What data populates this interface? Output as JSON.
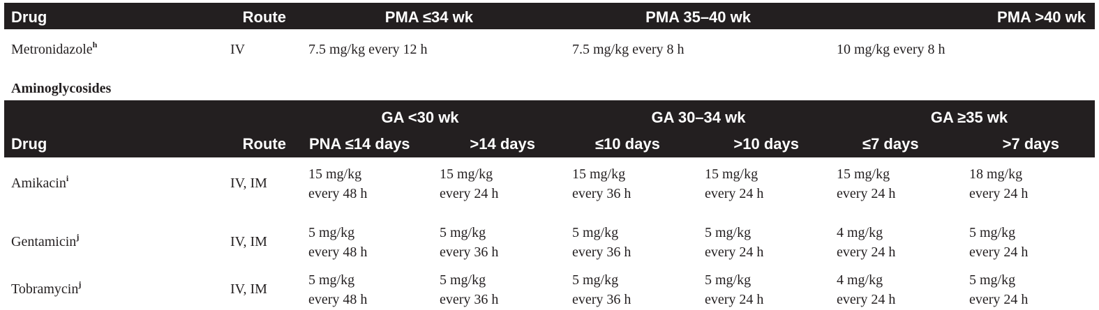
{
  "table1": {
    "headers": {
      "drug": "Drug",
      "route": "Route",
      "pma1": "PMA ≤34 wk",
      "pma2": "PMA 35–40 wk",
      "pma3": "PMA >40 wk"
    },
    "row": {
      "drug": "Metronidazole",
      "footnote": "h",
      "route": "IV",
      "pma1": "7.5 mg/kg every 12 h",
      "pma2": "7.5 mg/kg every 8 h",
      "pma3": "10 mg/kg every 8 h"
    }
  },
  "section_title": "Aminoglycosides",
  "table2": {
    "group_headers": {
      "ga1": "GA <30 wk",
      "ga2": "GA 30–34 wk",
      "ga3": "GA ≥35 wk"
    },
    "headers": {
      "drug": "Drug",
      "route": "Route",
      "c1": "PNA ≤14 days",
      "c2": ">14 days",
      "c3": "≤10 days",
      "c4": ">10 days",
      "c5": "≤7 days",
      "c6": ">7 days"
    },
    "rows": [
      {
        "drug": "Amikacin",
        "footnote": "i",
        "route": "IV, IM",
        "cells": [
          {
            "dose": "15 mg/kg",
            "interval": "every 48 h"
          },
          {
            "dose": "15 mg/kg",
            "interval": "every 24 h"
          },
          {
            "dose": "15 mg/kg",
            "interval": "every 36 h"
          },
          {
            "dose": "15 mg/kg",
            "interval": "every 24 h"
          },
          {
            "dose": "15 mg/kg",
            "interval": "every 24 h"
          },
          {
            "dose": "18 mg/kg",
            "interval": "every 24 h"
          }
        ]
      },
      {
        "drug": "Gentamicin",
        "footnote": "j",
        "route": "IV, IM",
        "cells": [
          {
            "dose": "5 mg/kg",
            "interval": "every 48 h"
          },
          {
            "dose": "5 mg/kg",
            "interval": "every 36 h"
          },
          {
            "dose": "5 mg/kg",
            "interval": "every 36 h"
          },
          {
            "dose": "5 mg/kg",
            "interval": "every 24 h"
          },
          {
            "dose": "4 mg/kg",
            "interval": "every 24 h"
          },
          {
            "dose": "5 mg/kg",
            "interval": "every 24 h"
          }
        ]
      },
      {
        "drug": "Tobramycin",
        "footnote": "j",
        "route": "IV, IM",
        "cells": [
          {
            "dose": "5 mg/kg",
            "interval": "every 48 h"
          },
          {
            "dose": "5 mg/kg",
            "interval": "every 36 h"
          },
          {
            "dose": "5 mg/kg",
            "interval": "every 36 h"
          },
          {
            "dose": "5 mg/kg",
            "interval": "every 24 h"
          },
          {
            "dose": "4 mg/kg",
            "interval": "every 24 h"
          },
          {
            "dose": "5 mg/kg",
            "interval": "every 24 h"
          }
        ]
      }
    ]
  }
}
